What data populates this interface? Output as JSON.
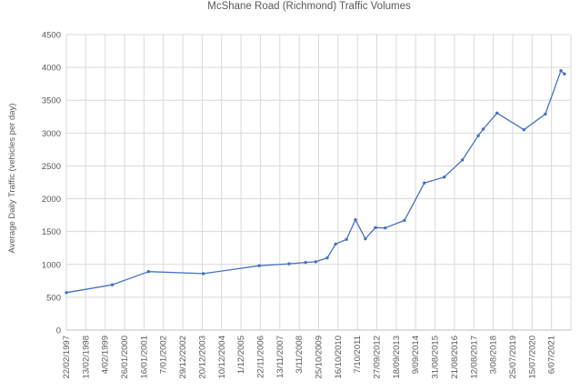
{
  "chart_data": {
    "type": "line",
    "title": "McShane Road (Richmond) Traffic Volumes",
    "xlabel": "",
    "ylabel": "Average Daily Traffic (vehicles per day)",
    "ylim": [
      0,
      4500
    ],
    "ytick_step": 500,
    "grid": true,
    "legend": "none",
    "color": "#4472C4",
    "x_tick_labels": [
      "22/02/1997",
      "13/02/1998",
      "4/02/1999",
      "26/01/2000",
      "16/01/2001",
      "7/01/2002",
      "29/12/2002",
      "20/12/2003",
      "10/12/2004",
      "1/12/2005",
      "22/11/2006",
      "13/11/2007",
      "3/11/2008",
      "25/10/2009",
      "16/10/2010",
      "7/10/2011",
      "27/09/2012",
      "18/09/2013",
      "9/09/2014",
      "31/08/2015",
      "21/08/2016",
      "12/08/2017",
      "3/08/2018",
      "25/07/2019",
      "15/07/2020",
      "6/07/2021"
    ],
    "series": [
      {
        "points": [
          {
            "x": "1997-02-22",
            "y": 570
          },
          {
            "x": "1999-06-15",
            "y": 690
          },
          {
            "x": "2001-04-10",
            "y": 890
          },
          {
            "x": "2004-01-10",
            "y": 860
          },
          {
            "x": "2006-11-01",
            "y": 980
          },
          {
            "x": "2008-05-01",
            "y": 1010
          },
          {
            "x": "2009-03-01",
            "y": 1030
          },
          {
            "x": "2009-09-01",
            "y": 1040
          },
          {
            "x": "2010-04-01",
            "y": 1100
          },
          {
            "x": "2010-09-01",
            "y": 1310
          },
          {
            "x": "2011-03-20",
            "y": 1380
          },
          {
            "x": "2011-09-01",
            "y": 1680
          },
          {
            "x": "2012-03-01",
            "y": 1390
          },
          {
            "x": "2012-09-01",
            "y": 1560
          },
          {
            "x": "2013-03-01",
            "y": 1555
          },
          {
            "x": "2014-02-15",
            "y": 1670
          },
          {
            "x": "2015-02-15",
            "y": 2240
          },
          {
            "x": "2016-02-15",
            "y": 2330
          },
          {
            "x": "2017-01-15",
            "y": 2590
          },
          {
            "x": "2017-11-01",
            "y": 2960
          },
          {
            "x": "2018-02-01",
            "y": 3060
          },
          {
            "x": "2018-10-10",
            "y": 3305
          },
          {
            "x": "2020-02-15",
            "y": 3050
          },
          {
            "x": "2021-03-15",
            "y": 3290
          },
          {
            "x": "2021-12-25",
            "y": 3950
          },
          {
            "x": "2022-03-01",
            "y": 3900
          }
        ]
      }
    ]
  }
}
